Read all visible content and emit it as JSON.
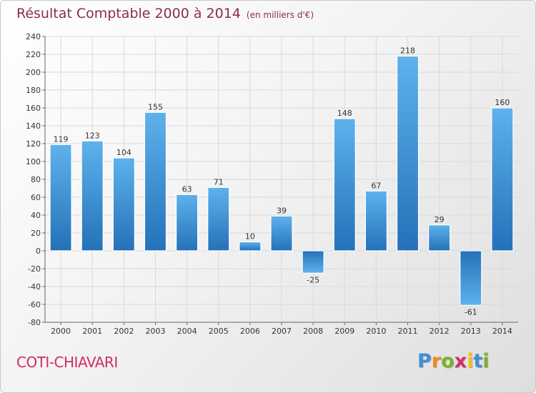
{
  "title": "Résultat Comptable 2000 à 2014",
  "subtitle": "(en milliers d'€)",
  "city": "COTI-CHIAVARI",
  "logo": {
    "text": "Proxiti",
    "letters": [
      "P",
      "r",
      "o",
      "x",
      "i",
      "t",
      "i"
    ],
    "colors": [
      "#3f8fd6",
      "#f08a1c",
      "#77b52b",
      "#d62c6f",
      "#f3c21a",
      "#3f8fd6",
      "#77b52b"
    ]
  },
  "colors": {
    "bar_top": "#5eb2ec",
    "bar_bottom": "#2471b8",
    "title": "#8c2c4f",
    "city": "#cf2e66"
  },
  "chart_data": {
    "type": "bar",
    "title": "Résultat Comptable 2000 à 2014",
    "subtitle": "(en milliers d'€)",
    "xlabel": "",
    "ylabel": "",
    "ylim": [
      -80,
      240
    ],
    "ytick_step": 20,
    "grid": true,
    "categories": [
      "2000",
      "2001",
      "2002",
      "2003",
      "2004",
      "2005",
      "2006",
      "2007",
      "2008",
      "2009",
      "2010",
      "2011",
      "2012",
      "2013",
      "2014"
    ],
    "values": [
      119,
      123,
      104,
      155,
      63,
      71,
      10,
      39,
      -25,
      148,
      67,
      218,
      29,
      -61,
      160
    ]
  }
}
